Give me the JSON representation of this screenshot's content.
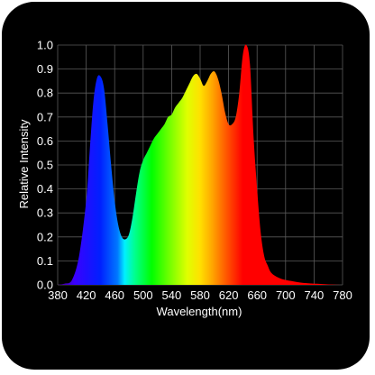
{
  "chart_data": {
    "type": "area",
    "title": "",
    "xlabel": "Wavelength(nm)",
    "ylabel": "Relative Intensity",
    "xlim": [
      380,
      780
    ],
    "ylim": [
      0.0,
      1.0
    ],
    "grid": true,
    "x_ticks": [
      "380",
      "420",
      "460",
      "500",
      "540",
      "580",
      "620",
      "660",
      "700",
      "740",
      "780"
    ],
    "y_ticks": [
      "0.0",
      "0.1",
      "0.2",
      "0.3",
      "0.4",
      "0.5",
      "0.6",
      "0.7",
      "0.8",
      "0.9",
      "1.0"
    ],
    "series": [
      {
        "x": [
          380,
          390,
          400,
          410,
          420,
          425,
          430,
          435,
          440,
          445,
          450,
          455,
          460,
          465,
          470,
          475,
          480,
          485,
          490,
          495,
          500,
          505,
          510,
          515,
          520,
          525,
          530,
          535,
          540,
          545,
          550,
          555,
          560,
          565,
          570,
          575,
          580,
          585,
          590,
          595,
          600,
          605,
          610,
          615,
          620,
          625,
          630,
          635,
          640,
          645,
          650,
          655,
          660,
          665,
          670,
          675,
          680,
          690,
          700,
          710,
          720,
          730,
          740,
          760,
          780
        ],
        "values": [
          0.0,
          0.005,
          0.02,
          0.12,
          0.35,
          0.56,
          0.76,
          0.86,
          0.87,
          0.82,
          0.67,
          0.5,
          0.35,
          0.25,
          0.2,
          0.19,
          0.21,
          0.28,
          0.38,
          0.47,
          0.52,
          0.55,
          0.58,
          0.61,
          0.63,
          0.65,
          0.67,
          0.7,
          0.71,
          0.74,
          0.76,
          0.78,
          0.81,
          0.84,
          0.87,
          0.88,
          0.86,
          0.83,
          0.85,
          0.88,
          0.89,
          0.86,
          0.8,
          0.72,
          0.67,
          0.67,
          0.7,
          0.8,
          0.96,
          1.0,
          0.92,
          0.62,
          0.4,
          0.22,
          0.12,
          0.08,
          0.05,
          0.03,
          0.02,
          0.015,
          0.01,
          0.007,
          0.005,
          0.002,
          0.0
        ]
      }
    ]
  },
  "colors": {
    "background": "#000000",
    "grid": "#5a5a5a",
    "text": "#ffffff"
  }
}
